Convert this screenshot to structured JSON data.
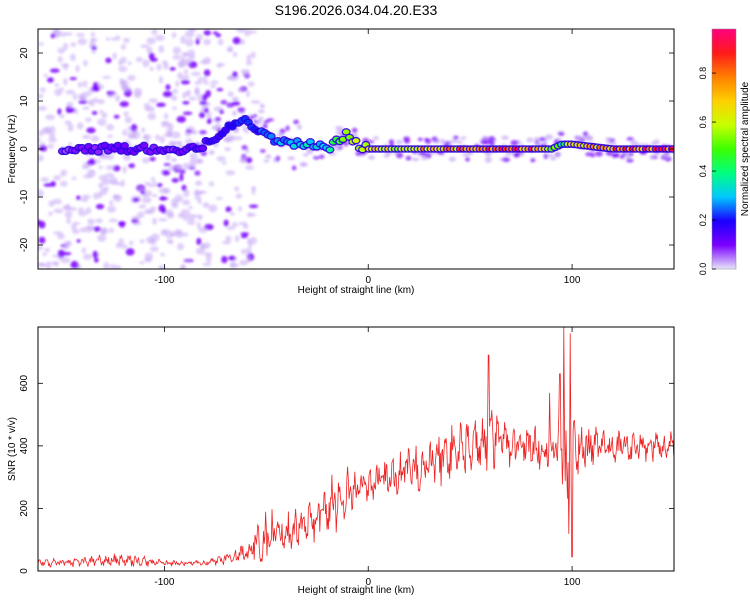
{
  "title": "S196.2026.034.04.20.E33",
  "colorbar": {
    "label": "Normalized spectral amplitude",
    "ticks": [
      "0.0",
      "0.2",
      "0.4",
      "0.6",
      "0.8"
    ],
    "tick_values": [
      0.0,
      0.2,
      0.4,
      0.6,
      0.8
    ],
    "range": [
      0,
      0.98
    ],
    "colors": [
      "#e6e6fa",
      "#7b00ff",
      "#1a00ff",
      "#00c8ff",
      "#00ff7f",
      "#3cff00",
      "#c8ff00",
      "#ffd000",
      "#ff7f00",
      "#ff1a1a",
      "#ff0080"
    ]
  },
  "chart_data": [
    {
      "type": "heatmap",
      "name": "spectrogram",
      "title": "S196.2026.034.04.20.E33",
      "xlabel": "Height of straight line (km)",
      "ylabel": "Frequency (Hz)",
      "xlim": [
        -162,
        150
      ],
      "ylim": [
        -25,
        25
      ],
      "xticks": [
        -100,
        0,
        100
      ],
      "xtick_labels": [
        "-100",
        "0",
        "100"
      ],
      "yticks": [
        -20,
        -10,
        0,
        10,
        20
      ],
      "ytick_labels": [
        "-20",
        "-10",
        "0",
        "10",
        "20"
      ],
      "zlabel": "Normalized spectral amplitude",
      "zlim": [
        0,
        0.98
      ],
      "ridge": {
        "x": [
          -162,
          -140,
          -120,
          -100,
          -90,
          -80,
          -70,
          -60,
          -50,
          -40,
          -30,
          -20,
          -15,
          -10,
          -5,
          0,
          20,
          40,
          60,
          80,
          90,
          95,
          100,
          120,
          140,
          150
        ],
        "frequency": [
          0,
          0,
          0,
          0,
          0,
          1,
          4,
          6,
          3,
          1,
          1,
          0,
          2,
          3,
          1,
          0,
          0,
          0,
          0,
          0,
          0,
          1,
          1,
          0,
          0,
          0
        ],
        "amplitude": [
          0.05,
          0.1,
          0.12,
          0.1,
          0.12,
          0.15,
          0.2,
          0.22,
          0.25,
          0.3,
          0.35,
          0.4,
          0.5,
          0.55,
          0.6,
          0.65,
          0.75,
          0.8,
          0.85,
          0.88,
          0.6,
          0.5,
          0.7,
          0.85,
          0.92,
          0.95
        ]
      },
      "noise_region_x": [
        -162,
        -65
      ]
    },
    {
      "type": "line",
      "name": "snr",
      "xlabel": "Height of straight line (km)",
      "ylabel": "SNR (10 * v/v)",
      "xlim": [
        -162,
        150
      ],
      "ylim": [
        0,
        780
      ],
      "xticks": [
        -100,
        0,
        100
      ],
      "xtick_labels": [
        "-100",
        "0",
        "100"
      ],
      "yticks": [
        0,
        200,
        400,
        600
      ],
      "ytick_labels": [
        "0",
        "200",
        "400",
        "600"
      ],
      "color": "#ee2222",
      "envelope": {
        "x": [
          -162,
          -140,
          -120,
          -100,
          -80,
          -70,
          -60,
          -50,
          -40,
          -30,
          -20,
          -10,
          0,
          10,
          20,
          30,
          40,
          50,
          60,
          70,
          80,
          90,
          95,
          98,
          100,
          102,
          110,
          120,
          130,
          140,
          150
        ],
        "mean": [
          25,
          30,
          35,
          25,
          25,
          40,
          60,
          110,
          130,
          150,
          200,
          250,
          270,
          300,
          320,
          340,
          380,
          400,
          420,
          410,
          400,
          390,
          380,
          300,
          360,
          400,
          400,
          400,
          395,
          400,
          400
        ],
        "amplitude": [
          15,
          20,
          30,
          10,
          10,
          25,
          45,
          110,
          90,
          80,
          120,
          100,
          60,
          80,
          100,
          90,
          120,
          110,
          130,
          100,
          90,
          80,
          150,
          300,
          250,
          120,
          80,
          60,
          60,
          60,
          60
        ]
      },
      "peaks": [
        {
          "x": 59,
          "y": 690
        },
        {
          "x": 89,
          "y": 570
        },
        {
          "x": 94,
          "y": 630
        },
        {
          "x": 96,
          "y": 780
        },
        {
          "x": 99,
          "y": 760
        },
        {
          "x": 100,
          "y": 45
        }
      ]
    }
  ]
}
